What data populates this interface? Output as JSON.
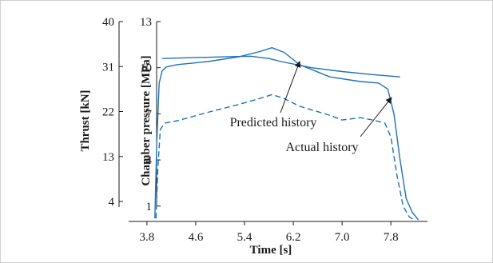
{
  "chart_data": {
    "type": "line",
    "xlabel": "Time [s]",
    "x_ticks": [
      "3.8",
      "4.6",
      "5.4",
      "6.2",
      "7.0",
      "7.8"
    ],
    "xlim": [
      3.5,
      8.4
    ],
    "y_axes": [
      {
        "label": "Thrust [kN]",
        "ticks": [
          "4",
          "13",
          "22",
          "31",
          "40"
        ],
        "ylim": [
          0,
          40
        ]
      },
      {
        "label": "Chamber pressure [MPa]",
        "ticks": [
          "1",
          "4",
          "7",
          "10",
          "13"
        ],
        "ylim": [
          0,
          13
        ]
      }
    ],
    "series": [
      {
        "style": "solid",
        "x": [
          4.05,
          4.5,
          5.0,
          5.5,
          5.8,
          6.0,
          6.5,
          7.0,
          7.5,
          7.95
        ],
        "y": [
          10.6,
          10.65,
          10.7,
          10.75,
          10.6,
          10.4,
          10.0,
          9.75,
          9.55,
          9.4
        ]
      },
      {
        "style": "solid",
        "x": [
          3.93,
          3.96,
          4.0,
          4.05,
          4.12,
          4.3,
          4.8,
          5.3,
          5.65,
          5.85,
          6.05,
          6.3,
          6.8,
          7.3,
          7.6,
          7.75,
          7.85,
          7.95,
          8.05,
          8.15,
          8.25
        ],
        "y": [
          0.2,
          5.0,
          9.0,
          9.8,
          10.05,
          10.2,
          10.4,
          10.7,
          11.05,
          11.3,
          11.0,
          10.2,
          9.4,
          9.1,
          9.0,
          8.6,
          7.0,
          4.0,
          1.5,
          0.6,
          0.1
        ]
      },
      {
        "style": "dashed",
        "x": [
          3.95,
          3.98,
          4.02,
          4.1,
          4.3,
          4.8,
          5.3,
          5.65,
          5.85,
          6.05,
          6.3,
          6.8,
          7.0,
          7.3,
          7.5,
          7.7,
          7.8,
          7.9,
          8.0,
          8.1,
          8.2
        ],
        "y": [
          0.2,
          3.5,
          6.0,
          6.4,
          6.55,
          7.1,
          7.6,
          8.0,
          8.25,
          8.0,
          7.5,
          6.9,
          6.6,
          6.75,
          6.6,
          6.4,
          5.5,
          3.0,
          1.0,
          0.3,
          0.05
        ]
      }
    ],
    "annotations": [
      {
        "text": "Predicted history",
        "x": 6.0,
        "y": 6.05
      },
      {
        "text": "Actual history",
        "x": 7.55,
        "y": 8.1
      }
    ],
    "colors": {
      "line": "#1f72b8",
      "axis": "#1a1a1a",
      "border": "#cfcfcf"
    }
  }
}
